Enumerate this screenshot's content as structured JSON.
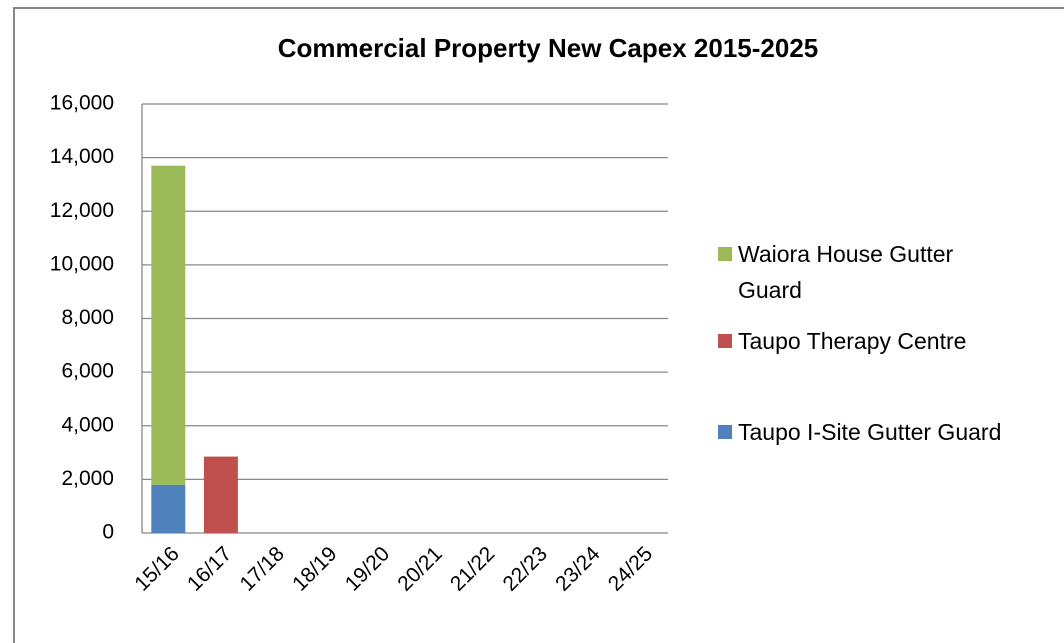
{
  "chart_data": {
    "type": "stacked_bar",
    "title": "Commercial Property New Capex 2015-2025",
    "categories": [
      "15/16",
      "16/17",
      "17/18",
      "18/19",
      "19/20",
      "20/21",
      "21/22",
      "22/23",
      "23/24",
      "24/25"
    ],
    "series": [
      {
        "name": "Taupo I-Site Gutter Guard",
        "color": "#4f81bd",
        "values": [
          1800,
          0,
          0,
          0,
          0,
          0,
          0,
          0,
          0,
          0
        ]
      },
      {
        "name": "Taupo Therapy Centre",
        "color": "#c0504d",
        "values": [
          0,
          2850,
          0,
          0,
          0,
          0,
          0,
          0,
          0,
          0
        ]
      },
      {
        "name": "Waiora House Gutter Guard",
        "color": "#9bbb59",
        "values": [
          11900,
          0,
          0,
          0,
          0,
          0,
          0,
          0,
          0,
          0
        ]
      }
    ],
    "ylim": [
      0,
      16000
    ],
    "yticks": [
      0,
      {
        "value": 2000,
        "label": "2,000"
      },
      {
        "value": 4000,
        "label": "4,000"
      },
      {
        "value": 6000,
        "label": "6,000"
      },
      {
        "value": 8000,
        "label": "8,000"
      },
      {
        "value": 10000,
        "label": "10,000"
      },
      {
        "value": 12000,
        "label": "12,000"
      },
      {
        "value": 14000,
        "label": "14,000"
      },
      {
        "value": 16000,
        "label": "16,000"
      }
    ],
    "grid": true,
    "legend": "right"
  }
}
